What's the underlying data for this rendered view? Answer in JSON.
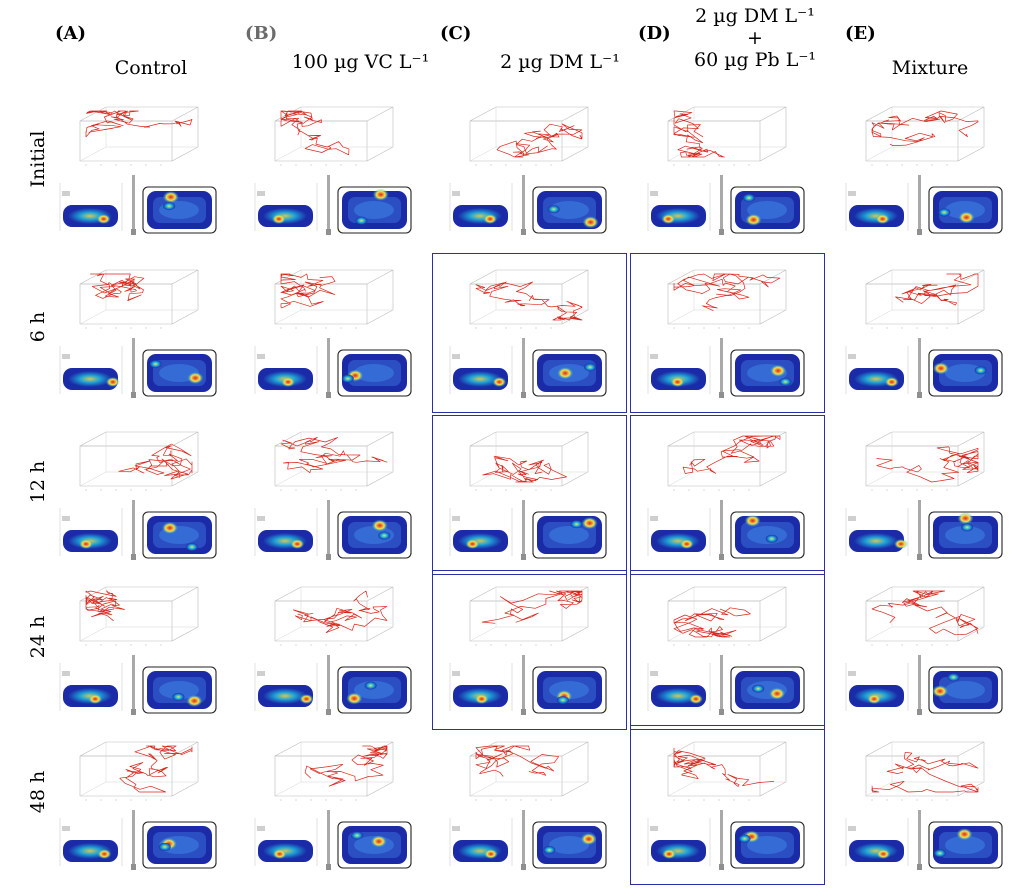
{
  "columns": [
    {
      "letter": "(A)",
      "name_lines": [
        "Control"
      ]
    },
    {
      "letter": "(B)",
      "name_lines": [
        "100 µg VC L⁻¹"
      ]
    },
    {
      "letter": "(C)",
      "name_lines": [
        "2 µg DM L⁻¹"
      ]
    },
    {
      "letter": "(D)",
      "name_lines": [
        "2 µg DM L⁻¹",
        "+",
        "60 µg Pb L⁻¹"
      ]
    },
    {
      "letter": "(E)",
      "name_lines": [
        "Mixture"
      ]
    }
  ],
  "rows": [
    {
      "label": "Initial"
    },
    {
      "label": "6 h"
    },
    {
      "label": "12 h"
    },
    {
      "label": "24 h"
    },
    {
      "label": "48 h"
    }
  ],
  "highlighted_cells": [
    {
      "col": 2,
      "row": 1
    },
    {
      "col": 3,
      "row": 1
    },
    {
      "col": 2,
      "row": 2
    },
    {
      "col": 3,
      "row": 2
    },
    {
      "col": 2,
      "row": 3
    },
    {
      "col": 3,
      "row": 3
    },
    {
      "col": 3,
      "row": 4
    }
  ],
  "colors": {
    "trajectory": "#d9261c",
    "highlight_border": "#2b2fa8",
    "heat_low": "#1b2ba8",
    "heat_mid": "#1fb8e0",
    "heat_high": "#f2e24a",
    "heat_peak": "#e0241b"
  }
}
